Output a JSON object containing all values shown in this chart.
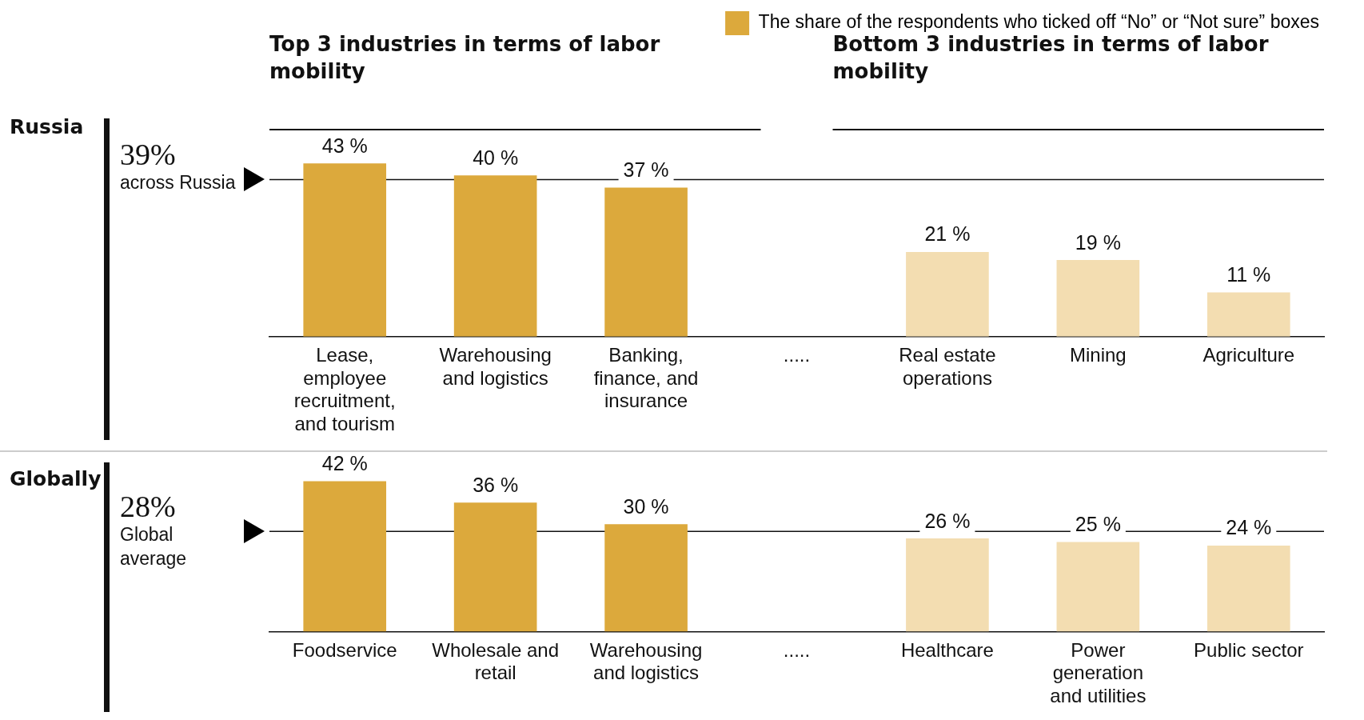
{
  "chart_data": [
    {
      "type": "bar",
      "ylabel": "Russia",
      "categories": [
        "Lease, employee recruitment, and tourism",
        "Warehousing and logistics",
        "Banking, finance, and insurance",
        ".....",
        "Real estate operations",
        "Mining",
        "Agriculture"
      ],
      "series": [
        {
          "name": "The share of the respondents who ticked off “No” or “Not sure” boxes",
          "color": "#dca93c",
          "colors": [
            "#dca93c",
            "#dca93c",
            "#dca93c",
            null,
            "#f3ddb1",
            "#f3ddb1",
            "#f3ddb1"
          ],
          "values": [
            43,
            40,
            37,
            null,
            21,
            19,
            11
          ],
          "value_labels": [
            "43 %",
            "40 %",
            "37 %",
            null,
            "21 %",
            "19 %",
            "11 %"
          ]
        }
      ],
      "tick_labels": "x",
      "grid": false,
      "legend": "top right",
      "ref_lines": [
        {
          "axis": "y",
          "value": 39,
          "label": "39% across Russia"
        }
      ],
      "annotations": [
        "Top 3 industries in terms of labor mobility",
        "Bottom 3 industries in terms of labor mobility"
      ]
    },
    {
      "type": "bar",
      "ylabel": "Globally",
      "categories": [
        "Foodservice",
        "Wholesale and retail",
        "Warehousing and logistics",
        ".....",
        "Healthcare",
        "Power generation and utilities",
        "Public sector"
      ],
      "series": [
        {
          "color": "#dca93c",
          "colors": [
            "#dca93c",
            "#dca93c",
            "#dca93c",
            null,
            "#f3ddb1",
            "#f3ddb1",
            "#f3ddb1"
          ],
          "values": [
            42,
            36,
            30,
            null,
            26,
            25,
            24
          ],
          "value_labels": [
            "42 %",
            "36 %",
            "30 %",
            null,
            "26 %",
            "25 %",
            "24 %"
          ]
        }
      ],
      "tick_labels": "x",
      "grid": false,
      "legend": false,
      "ref_lines": [
        {
          "axis": "y",
          "value": 28,
          "label": "28% Global average"
        }
      ]
    }
  ]
}
